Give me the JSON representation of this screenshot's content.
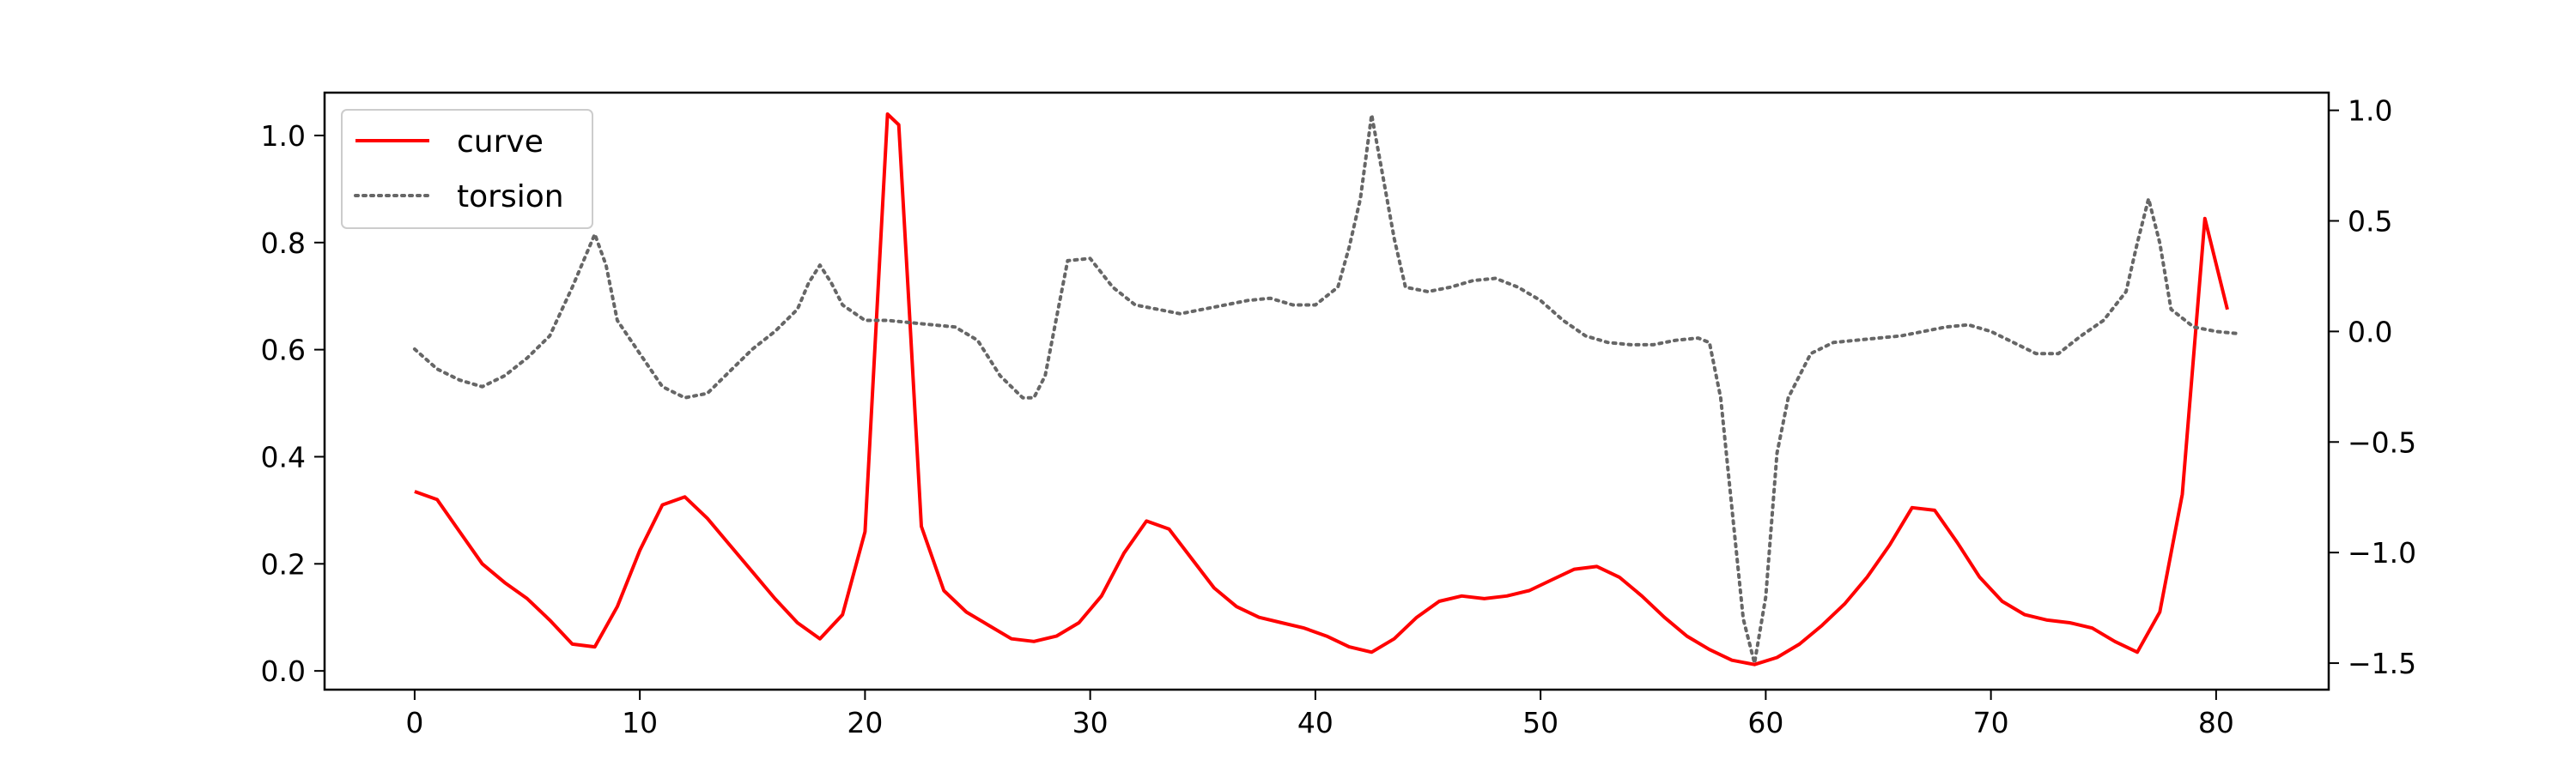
{
  "chart_data": {
    "type": "line",
    "title": "",
    "xlabel": "",
    "ylabel": "",
    "y2label": "",
    "xlim": [
      -4,
      85
    ],
    "ylim": [
      -0.035,
      1.08
    ],
    "y2lim": [
      -1.62,
      1.08
    ],
    "xticks": [
      0,
      10,
      20,
      30,
      40,
      50,
      60,
      70,
      80
    ],
    "yticks": [
      0.0,
      0.2,
      0.4,
      0.6,
      0.8,
      1.0
    ],
    "y2ticks": [
      -1.5,
      -1.0,
      -0.5,
      0.0,
      0.5,
      1.0
    ],
    "xtick_labels": [
      "0",
      "10",
      "20",
      "30",
      "40",
      "50",
      "60",
      "70",
      "80"
    ],
    "ytick_labels": [
      "0.0",
      "0.2",
      "0.4",
      "0.6",
      "0.8",
      "1.0"
    ],
    "y2tick_labels": [
      "−1.5",
      "−1.0",
      "−0.5",
      "0.0",
      "0.5",
      "1.0"
    ],
    "grid": false,
    "legend_position": "top-left",
    "series": [
      {
        "name": "curve",
        "axis": "left",
        "color": "#ff0000",
        "style": "solid",
        "x": [
          0,
          1,
          2,
          3,
          4,
          5,
          6,
          7,
          8,
          9,
          10,
          11,
          12,
          13,
          14,
          15,
          16,
          17,
          18,
          19,
          20,
          21,
          21.5,
          22,
          22.5,
          23.5,
          24.5,
          25.5,
          26.5,
          27.5,
          28.5,
          29.5,
          30.5,
          31.5,
          32.5,
          33.5,
          34.5,
          35.5,
          36.5,
          37.5,
          38.5,
          39.5,
          40.5,
          41.5,
          42.5,
          43.5,
          44.5,
          45.5,
          46.5,
          47.5,
          48.5,
          49.5,
          50.5,
          51.5,
          52.5,
          53.5,
          54.5,
          55.5,
          56.5,
          57.5,
          58.5,
          59.5,
          60.5,
          61.5,
          62.5,
          63.5,
          64.5,
          65.5,
          66.5,
          67.5,
          68.5,
          69.5,
          70.5,
          71.5,
          72.5,
          73.5,
          74.5,
          75.5,
          76.5,
          77.5,
          78.5,
          79.5,
          80.5
        ],
        "values": [
          0.335,
          0.32,
          0.26,
          0.2,
          0.165,
          0.135,
          0.095,
          0.05,
          0.045,
          0.12,
          0.225,
          0.31,
          0.325,
          0.285,
          0.235,
          0.185,
          0.135,
          0.09,
          0.06,
          0.105,
          0.26,
          1.04,
          1.02,
          0.65,
          0.27,
          0.15,
          0.11,
          0.085,
          0.06,
          0.055,
          0.065,
          0.09,
          0.14,
          0.22,
          0.28,
          0.265,
          0.21,
          0.155,
          0.12,
          0.1,
          0.09,
          0.08,
          0.065,
          0.045,
          0.035,
          0.06,
          0.1,
          0.13,
          0.14,
          0.135,
          0.14,
          0.15,
          0.17,
          0.19,
          0.195,
          0.175,
          0.14,
          0.1,
          0.065,
          0.04,
          0.02,
          0.012,
          0.025,
          0.05,
          0.085,
          0.125,
          0.175,
          0.235,
          0.305,
          0.3,
          0.24,
          0.175,
          0.13,
          0.105,
          0.095,
          0.09,
          0.08,
          0.055,
          0.035,
          0.11,
          0.33,
          0.845,
          0.675
        ]
      },
      {
        "name": "torsion",
        "axis": "right",
        "color": "#666666",
        "style": "dotted",
        "x": [
          0,
          1,
          2,
          3,
          4,
          5,
          6,
          7,
          7.5,
          8,
          8.5,
          9,
          10,
          11,
          12,
          13,
          14,
          15,
          16,
          17,
          17.5,
          18,
          18.5,
          19,
          20,
          21,
          22,
          23,
          24,
          25,
          26,
          27,
          27.5,
          28,
          29,
          30,
          31,
          32,
          33,
          34,
          35,
          36,
          37,
          38,
          39,
          40,
          41,
          41.5,
          42,
          42.5,
          43,
          43.5,
          44,
          45,
          46,
          47,
          48,
          49,
          50,
          51,
          52,
          53,
          54,
          55,
          56,
          57,
          57.5,
          58,
          58.5,
          59,
          59.5,
          60,
          60.5,
          61,
          62,
          63,
          64,
          65,
          66,
          67,
          68,
          69,
          70,
          71,
          72,
          73,
          74,
          75,
          76,
          76.5,
          77,
          77.5,
          78,
          79,
          80,
          81
        ],
        "values": [
          -0.08,
          -0.17,
          -0.22,
          -0.25,
          -0.2,
          -0.12,
          -0.02,
          0.2,
          0.32,
          0.44,
          0.3,
          0.05,
          -0.1,
          -0.25,
          -0.3,
          -0.28,
          -0.18,
          -0.08,
          0.0,
          0.1,
          0.22,
          0.3,
          0.22,
          0.12,
          0.05,
          0.05,
          0.04,
          0.03,
          0.02,
          -0.04,
          -0.2,
          -0.3,
          -0.3,
          -0.2,
          0.32,
          0.33,
          0.2,
          0.12,
          0.1,
          0.08,
          0.1,
          0.12,
          0.14,
          0.15,
          0.12,
          0.12,
          0.2,
          0.38,
          0.6,
          0.98,
          0.7,
          0.42,
          0.2,
          0.18,
          0.2,
          0.23,
          0.24,
          0.2,
          0.14,
          0.05,
          -0.02,
          -0.05,
          -0.06,
          -0.06,
          -0.04,
          -0.03,
          -0.05,
          -0.3,
          -0.8,
          -1.3,
          -1.5,
          -1.2,
          -0.55,
          -0.3,
          -0.1,
          -0.05,
          -0.04,
          -0.03,
          -0.02,
          0.0,
          0.02,
          0.03,
          0.0,
          -0.05,
          -0.1,
          -0.1,
          -0.02,
          0.05,
          0.18,
          0.4,
          0.6,
          0.4,
          0.1,
          0.02,
          0.0,
          -0.01
        ]
      }
    ]
  }
}
